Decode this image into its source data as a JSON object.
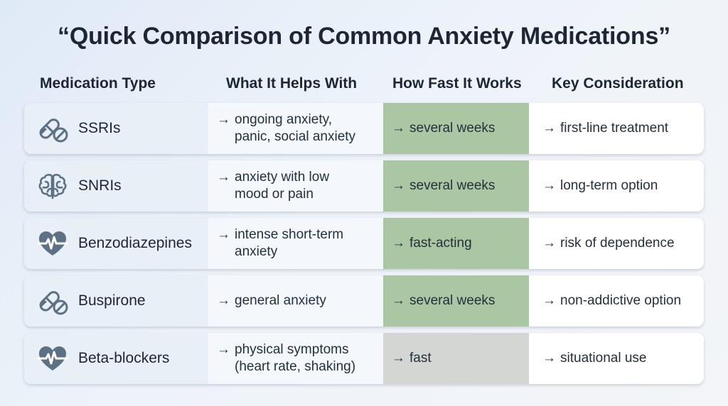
{
  "title": "“Quick Comparison of Common Anxiety Medications”",
  "headers": [
    "Medication Type",
    "What It Helps With",
    "How Fast It Works",
    "Key Consideration"
  ],
  "arrow": "→",
  "rows": [
    {
      "icon": "pill-icon",
      "name": "SSRIs",
      "helps": "ongoing anxiety,\npanic, social anxiety",
      "speed": "several weeks",
      "consideration": "first-line treatment"
    },
    {
      "icon": "brain-icon",
      "name": "SNRIs",
      "helps": "anxiety with low\nmood or pain",
      "speed": "several weeks",
      "consideration": "long-term option"
    },
    {
      "icon": "heart-pulse-icon",
      "name": "Benzodiazepines",
      "helps": "intense short-term\nanxiety",
      "speed": "fast-acting",
      "consideration": "risk of dependence"
    },
    {
      "icon": "pill-icon",
      "name": "Buspirone",
      "helps": "general anxiety",
      "speed": "several weeks",
      "consideration": "non-addictive option"
    },
    {
      "icon": "heart-pulse-icon",
      "name": "Beta-blockers",
      "helps": "physical symptoms\n(heart rate, shaking)",
      "speed": "fast",
      "consideration": "situational use"
    }
  ],
  "colors": {
    "speed_highlight": "#abc6a2",
    "speed_fast": "#d3d6d3",
    "icon": "#5c7184"
  }
}
